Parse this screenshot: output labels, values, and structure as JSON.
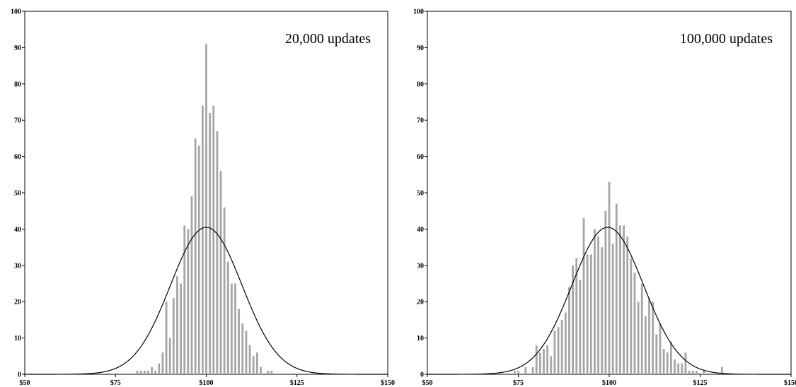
{
  "chart_data": [
    {
      "type": "bar",
      "annotation": "20,000 updates",
      "xlim": [
        50,
        150
      ],
      "ylim": [
        0,
        100
      ],
      "x_ticks": [
        50,
        75,
        100,
        125,
        150
      ],
      "x_tick_labels": [
        "$50",
        "$75",
        "$100",
        "$125",
        "$150"
      ],
      "y_ticks": [
        0,
        10,
        20,
        30,
        40,
        50,
        60,
        70,
        80,
        90,
        100
      ],
      "y_tick_labels": [
        "0",
        "10",
        "20",
        "30",
        "40",
        "50",
        "60",
        "70",
        "80",
        "90",
        "100"
      ],
      "grid": false,
      "bin_width": 1,
      "x": [
        81,
        82,
        83,
        84,
        85,
        86,
        87,
        88,
        89,
        90,
        91,
        92,
        93,
        94,
        95,
        96,
        97,
        98,
        99,
        100,
        101,
        102,
        103,
        104,
        105,
        106,
        107,
        108,
        109,
        110,
        111,
        112,
        113,
        114,
        115,
        116,
        117,
        118,
        119
      ],
      "values": [
        1,
        1,
        1,
        1,
        2,
        1,
        3,
        6,
        20,
        10,
        21,
        27,
        25,
        41,
        40,
        49,
        65,
        63,
        74,
        91,
        72,
        74,
        67,
        56,
        46,
        31,
        25,
        25,
        18,
        14,
        12,
        8,
        5,
        6,
        2,
        0,
        1,
        1,
        0
      ],
      "curve": {
        "type": "normal",
        "mean": 100,
        "sd": 9.85,
        "peak": 40.5
      }
    },
    {
      "type": "bar",
      "annotation": "100,000 updates",
      "xlim": [
        50,
        150
      ],
      "ylim": [
        0,
        100
      ],
      "x_ticks": [
        50,
        75,
        100,
        125,
        150
      ],
      "x_tick_labels": [
        "$50",
        "$75",
        "$100",
        "$125",
        "$150"
      ],
      "y_ticks": [
        0,
        10,
        20,
        30,
        40,
        50,
        60,
        70,
        80,
        90,
        100
      ],
      "y_tick_labels": [
        "0",
        "10",
        "20",
        "30",
        "40",
        "50",
        "60",
        "70",
        "80",
        "90",
        "100"
      ],
      "grid": false,
      "bin_width": 1,
      "x": [
        74,
        75,
        77,
        79,
        80,
        81,
        82,
        83,
        84,
        85,
        86,
        87,
        88,
        89,
        90,
        91,
        92,
        93,
        94,
        95,
        96,
        97,
        98,
        99,
        100,
        101,
        102,
        103,
        104,
        105,
        106,
        107,
        108,
        109,
        110,
        111,
        112,
        113,
        114,
        115,
        116,
        117,
        118,
        119,
        120,
        121,
        122,
        123,
        124,
        125,
        126,
        127,
        128,
        129,
        131
      ],
      "values": [
        1,
        1,
        2,
        2,
        8,
        6,
        7,
        8,
        5,
        12,
        13,
        15,
        17,
        24,
        30,
        32,
        26,
        43,
        33,
        33,
        40,
        38,
        35,
        45,
        53,
        36,
        47,
        41,
        41,
        38,
        32,
        28,
        20,
        25,
        16,
        21,
        20,
        11,
        14,
        7,
        6,
        9,
        4,
        3,
        3,
        6,
        1,
        1,
        1,
        0,
        1,
        0,
        0,
        0,
        2
      ],
      "curve": {
        "type": "normal",
        "mean": 99.6,
        "sd": 9.85,
        "peak": 40.5
      }
    }
  ]
}
